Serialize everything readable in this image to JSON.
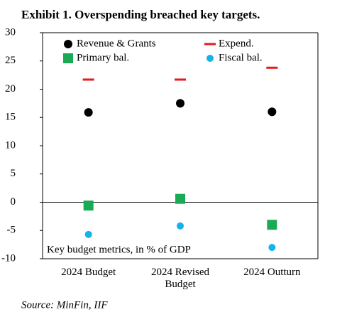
{
  "chart_data": {
    "type": "scatter",
    "title": "Exhibit 1. Overspending breached key targets.",
    "annotation": "Key budget metrics, in % of GDP",
    "source": "Source: MinFin, IIF",
    "categories": [
      "2024 Budget",
      "2024 Revised Budget",
      "2024 Outturn"
    ],
    "series": [
      {
        "name": "Revenue & Grants",
        "color": "#000000",
        "marker": "circle",
        "values": [
          15.9,
          17.5,
          16.0
        ]
      },
      {
        "name": "Expend.",
        "color": "#e3191c",
        "marker": "dash",
        "values": [
          21.7,
          21.7,
          23.8
        ]
      },
      {
        "name": "Primary bal.",
        "color": "#1aaa55",
        "marker": "square",
        "values": [
          -0.6,
          0.6,
          -4.0
        ]
      },
      {
        "name": "Fiscal bal.",
        "color": "#17b2ea",
        "marker": "circle",
        "values": [
          -5.7,
          -4.2,
          -8.0
        ]
      }
    ],
    "ylim": [
      -10,
      30
    ],
    "yticks": [
      -10,
      -5,
      0,
      5,
      10,
      15,
      20,
      25,
      30
    ]
  }
}
